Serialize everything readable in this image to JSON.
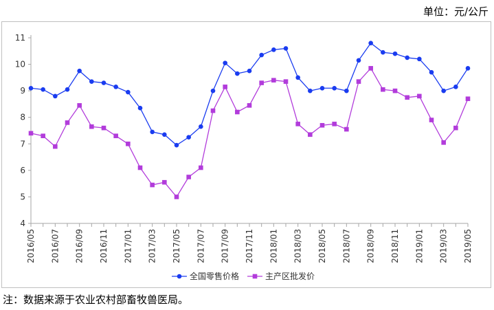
{
  "unit_label": "单位：元/公斤",
  "note": "注：数据来源于农业农村部畜牧兽医局。",
  "colors": {
    "retail": "#1a3cf0",
    "wholesale": "#b23cdb",
    "axis": "#a6a6a6"
  },
  "chart_data": {
    "type": "line",
    "title": "",
    "xlabel": "",
    "ylabel": "",
    "ylim": [
      4,
      11
    ],
    "yticks": [
      "4",
      "5",
      "6",
      "7",
      "8",
      "9",
      "10",
      "11"
    ],
    "grid": false,
    "legend_position": "bottom",
    "x": [
      "2016/05",
      "2016/06",
      "2016/07",
      "2016/08",
      "2016/09",
      "2016/10",
      "2016/11",
      "2016/12",
      "2017/01",
      "2017/02",
      "2017/03",
      "2017/04",
      "2017/05",
      "2017/06",
      "2017/07",
      "2017/08",
      "2017/09",
      "2017/10",
      "2017/11",
      "2017/12",
      "2018/01",
      "2018/02",
      "2018/03",
      "2018/04",
      "2018/05",
      "2018/06",
      "2018/07",
      "2018/08",
      "2018/09",
      "2018/10",
      "2018/11",
      "2018/12",
      "2019/01",
      "2019/02",
      "2019/03",
      "2019/04",
      "2019/05"
    ],
    "x_tick_labels": [
      "2016/05",
      "2016/07",
      "2016/09",
      "2016/11",
      "2017/01",
      "2017/03",
      "2017/05",
      "2017/07",
      "2017/09",
      "2017/11",
      "2018/01",
      "2018/03",
      "2018/05",
      "2018/07",
      "2018/09",
      "2018/11",
      "2019/01",
      "2019/03",
      "2019/05"
    ],
    "series": [
      {
        "name": "全国零售价格",
        "values": [
          9.1,
          9.05,
          8.8,
          9.05,
          9.75,
          9.35,
          9.3,
          9.15,
          8.95,
          8.35,
          7.45,
          7.35,
          6.95,
          7.25,
          7.65,
          9.0,
          10.05,
          9.65,
          9.75,
          10.35,
          10.55,
          10.6,
          9.5,
          9.0,
          9.1,
          9.1,
          9.0,
          10.15,
          10.8,
          10.45,
          10.4,
          10.25,
          10.2,
          9.7,
          9.0,
          9.15,
          9.85
        ]
      },
      {
        "name": "主产区批发价",
        "values": [
          7.4,
          7.3,
          6.9,
          7.8,
          8.45,
          7.65,
          7.6,
          7.3,
          7.0,
          6.1,
          5.45,
          5.55,
          5.0,
          5.75,
          6.1,
          8.25,
          9.15,
          8.2,
          8.45,
          9.3,
          9.4,
          9.35,
          7.75,
          7.35,
          7.7,
          7.75,
          7.55,
          9.35,
          9.85,
          9.05,
          9.0,
          8.75,
          8.8,
          7.9,
          7.05,
          7.6,
          8.7
        ]
      }
    ]
  }
}
